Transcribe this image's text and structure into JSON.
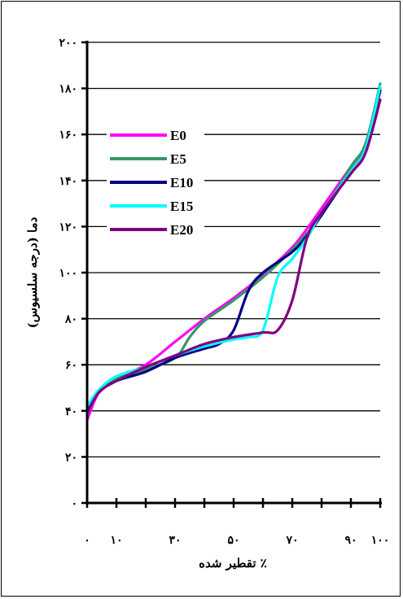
{
  "chart_data": {
    "type": "line",
    "title": "",
    "xlabel": "تقطیر شده ٪",
    "ylabel": "دما (درجه سلسیوس)",
    "xlim": [
      0,
      100
    ],
    "ylim": [
      0,
      200
    ],
    "grid": "horizontal",
    "legend_position": "left",
    "x_ticks": [
      0,
      10,
      30,
      50,
      70,
      90,
      100
    ],
    "x_tick_labels": [
      "۰",
      "۱۰",
      "۳۰",
      "۵۰",
      "۷۰",
      "۹۰",
      "۱۰۰"
    ],
    "y_ticks": [
      0,
      20,
      40,
      60,
      80,
      100,
      120,
      140,
      160,
      180,
      200
    ],
    "y_tick_labels": [
      "۰",
      "۲۰",
      "۴۰",
      "۶۰",
      "۸۰",
      "۱۰۰",
      "۱۲۰",
      "۱۴۰",
      "۱۶۰",
      "۱۸۰",
      "۲۰۰"
    ],
    "series": [
      {
        "name": "E0",
        "color": "#ff00ff",
        "x": [
          0,
          4,
          10,
          20,
          30,
          40,
          50,
          60,
          70,
          75,
          80,
          90,
          95,
          100
        ],
        "y": [
          36,
          48,
          54,
          60,
          70,
          80,
          89,
          99,
          111,
          119,
          128,
          146,
          156,
          180
        ]
      },
      {
        "name": "E5",
        "color": "#339966",
        "x": [
          0,
          4,
          10,
          20,
          30,
          35,
          40,
          50,
          60,
          70,
          75,
          80,
          90,
          95,
          100
        ],
        "y": [
          42,
          48,
          54,
          58,
          63,
          72,
          79,
          88,
          98,
          110,
          117,
          125,
          146,
          156,
          182
        ]
      },
      {
        "name": "E10",
        "color": "#000080",
        "x": [
          0,
          4,
          10,
          20,
          30,
          40,
          45,
          50,
          55,
          60,
          70,
          75,
          80,
          90,
          95,
          100
        ],
        "y": [
          40,
          48,
          53,
          57,
          63,
          67,
          69,
          75,
          92,
          100,
          109,
          116,
          125,
          144,
          154,
          179
        ]
      },
      {
        "name": "E15",
        "color": "#00ffff",
        "x": [
          0,
          4,
          10,
          20,
          30,
          40,
          50,
          55,
          60,
          65,
          70,
          75,
          80,
          90,
          95,
          100
        ],
        "y": [
          42,
          49,
          55,
          59,
          64,
          68,
          71,
          72,
          75,
          98,
          106,
          115,
          126,
          144,
          154,
          181
        ]
      },
      {
        "name": "E20",
        "color": "#800080",
        "x": [
          0,
          4,
          10,
          20,
          30,
          40,
          50,
          60,
          65,
          70,
          75,
          80,
          90,
          95,
          100
        ],
        "y": [
          39,
          48,
          53,
          59,
          64,
          69,
          72,
          74,
          75,
          88,
          115,
          126,
          143,
          152,
          175
        ]
      }
    ]
  }
}
